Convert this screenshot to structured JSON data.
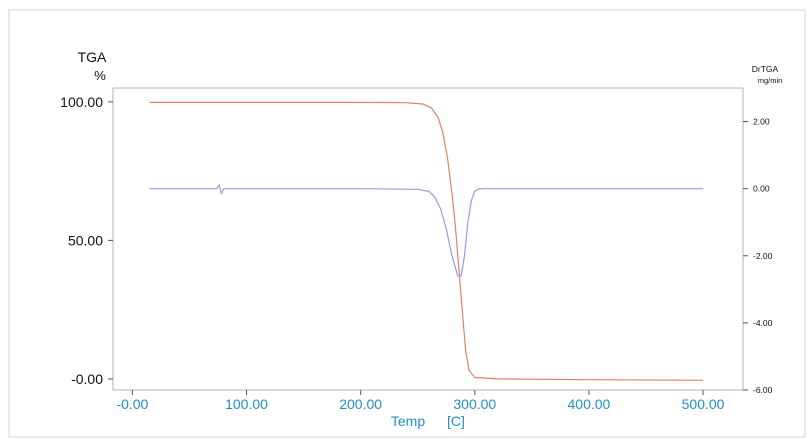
{
  "chart_data": {
    "type": "line",
    "xlabel": "Temp",
    "xunit": "[C]",
    "ylabel_left": "TGA",
    "yunit_left": "%",
    "ylabel_right": "DrTGA",
    "yunit_right": "mg/min",
    "xlim": [
      -17,
      535
    ],
    "ylim_left": [
      -4,
      105
    ],
    "ylim_right": [
      -6.0,
      3.0
    ],
    "x_ticks": [
      "-0.00",
      "100.00",
      "200.00",
      "300.00",
      "400.00",
      "500.00"
    ],
    "x_tick_values": [
      0,
      100,
      200,
      300,
      400,
      500
    ],
    "y_ticks_left": [
      "100.00",
      "50.00",
      "-0.00"
    ],
    "y_tick_values_left": [
      100,
      50,
      0
    ],
    "y_ticks_right": [
      "2.00",
      "0.00",
      "-2.00",
      "-4.00",
      "-6.00"
    ],
    "y_tick_values_right": [
      2,
      0,
      -2,
      -4,
      -6
    ],
    "grid": false,
    "series": [
      {
        "color": "#e0806a",
        "axis": "left",
        "x": [
          15,
          50,
          100,
          150,
          200,
          240,
          255,
          262,
          268,
          272,
          276,
          280,
          283,
          286,
          289,
          292,
          295,
          300,
          320,
          400,
          500
        ],
        "y": [
          99.8,
          99.8,
          99.8,
          99.8,
          99.8,
          99.7,
          99.2,
          97.8,
          94.2,
          89,
          80,
          67,
          55,
          40,
          25,
          10,
          3,
          0.5,
          0,
          -0.3,
          -0.5
        ]
      },
      {
        "color": "#9b9ae6",
        "axis": "right",
        "x": [
          15,
          60,
          74,
          76,
          78,
          80,
          100,
          200,
          250,
          260,
          265,
          270,
          275,
          280,
          285,
          288,
          291,
          294,
          297,
          300,
          303,
          310,
          400,
          500
        ],
        "y": [
          0,
          0,
          0,
          0.12,
          -0.15,
          0,
          0,
          0,
          -0.02,
          -0.08,
          -0.25,
          -0.6,
          -1.2,
          -2.0,
          -2.6,
          -2.6,
          -2.0,
          -1.0,
          -0.35,
          -0.08,
          -0.01,
          0,
          0,
          0
        ]
      }
    ]
  }
}
